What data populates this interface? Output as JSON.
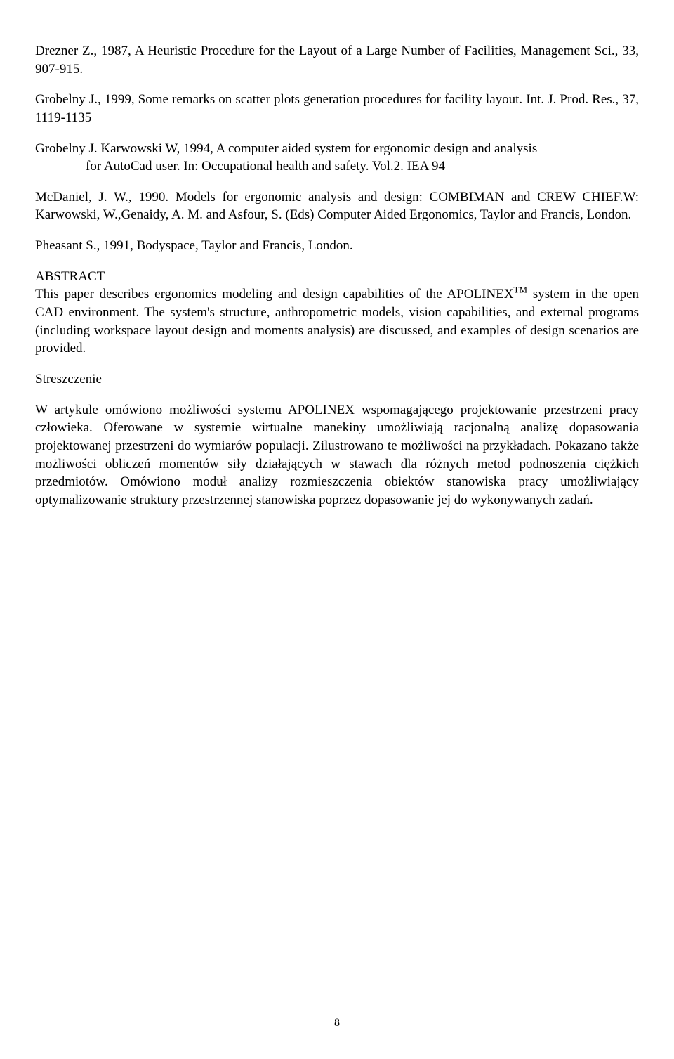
{
  "references": {
    "drezner": "Drezner Z., 1987, A Heuristic Procedure for the Layout of a Large Number of Facilities, Management Sci., 33, 907-915.",
    "grobelny1999": "Grobelny J., 1999, Some remarks on  scatter plots generation procedures for facility layout. Int. J. Prod. Res., 37, 1119-1135",
    "grobelny_karwowski_line1": "Grobelny J. Karwowski W, 1994, A computer aided system for ergonomic design and analysis",
    "grobelny_karwowski_line2": "for AutoCad user. In: Occupational health and safety. Vol.2. IEA 94",
    "mcdaniel": "McDaniel, J. W., 1990. Models for ergonomic analysis and design: COMBIMAN and CREW CHIEF.W: Karwowski, W.,Genaidy, A. M. and Asfour, S. (Eds) Computer Aided Ergonomics, Taylor and Francis, London.",
    "pheasant": "Pheasant S., 1991, Bodyspace, Taylor and Francis, London."
  },
  "abstract": {
    "heading": "ABSTRACT",
    "body_before_sup": "This paper describes ergonomics modeling and design capabilities of the APOLINEX",
    "superscript": "TM",
    "body_after_sup": " system in the open CAD environment. The system's structure, anthropometric models, vision capabilities, and external programs (including workspace layout design and moments analysis) are discussed, and examples of  design scenarios are provided."
  },
  "streszczenie": {
    "heading": "Streszczenie",
    "body": "W artykule omówiono możliwości systemu APOLINEX wspomagającego projektowanie przestrzeni pracy człowieka. Oferowane w systemie  wirtualne manekiny umożliwiają racjonalną analizę dopasowania projektowanej przestrzeni do wymiarów populacji. Zilustrowano te możliwości na przykładach. Pokazano także możliwości obliczeń momentów siły działających w stawach dla różnych metod podnoszenia ciężkich przedmiotów. Omówiono  moduł analizy rozmieszczenia obiektów stanowiska pracy umożliwiający optymalizowanie struktury przestrzennej stanowiska  poprzez dopasowanie jej do wykonywanych zadań."
  },
  "page_number": "8"
}
